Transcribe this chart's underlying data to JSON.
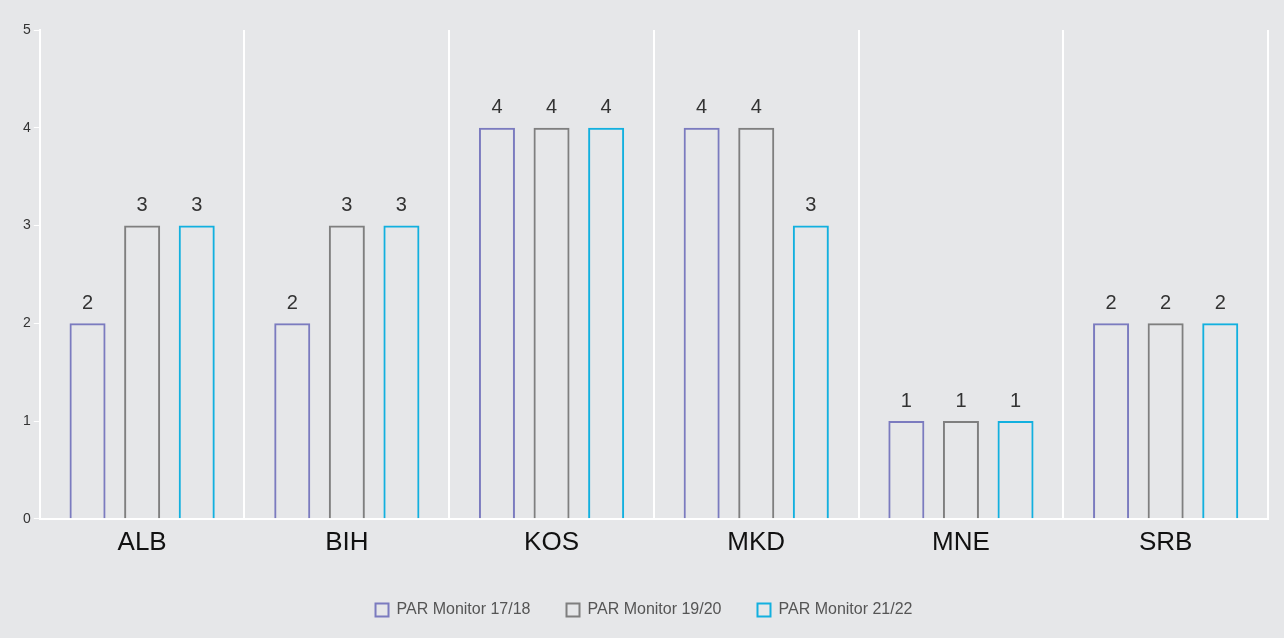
{
  "chart_data": {
    "type": "bar",
    "categories": [
      "ALB",
      "BIH",
      "KOS",
      "MKD",
      "MNE",
      "SRB"
    ],
    "series": [
      {
        "name": "PAR Monitor 17/18",
        "color": "#7b7bbf",
        "values": [
          2,
          2,
          4,
          4,
          1,
          2
        ]
      },
      {
        "name": "PAR Monitor 19/20",
        "color": "#7f7f7f",
        "values": [
          3,
          3,
          4,
          4,
          1,
          2
        ]
      },
      {
        "name": "PAR Monitor 21/22",
        "color": "#12b0df",
        "values": [
          3,
          3,
          4,
          3,
          1,
          2
        ]
      }
    ],
    "ylim": [
      0,
      5
    ],
    "yticks": [
      0,
      1,
      2,
      3,
      4,
      5
    ],
    "grid": "x",
    "legend": "bottom",
    "data_labels": true
  }
}
